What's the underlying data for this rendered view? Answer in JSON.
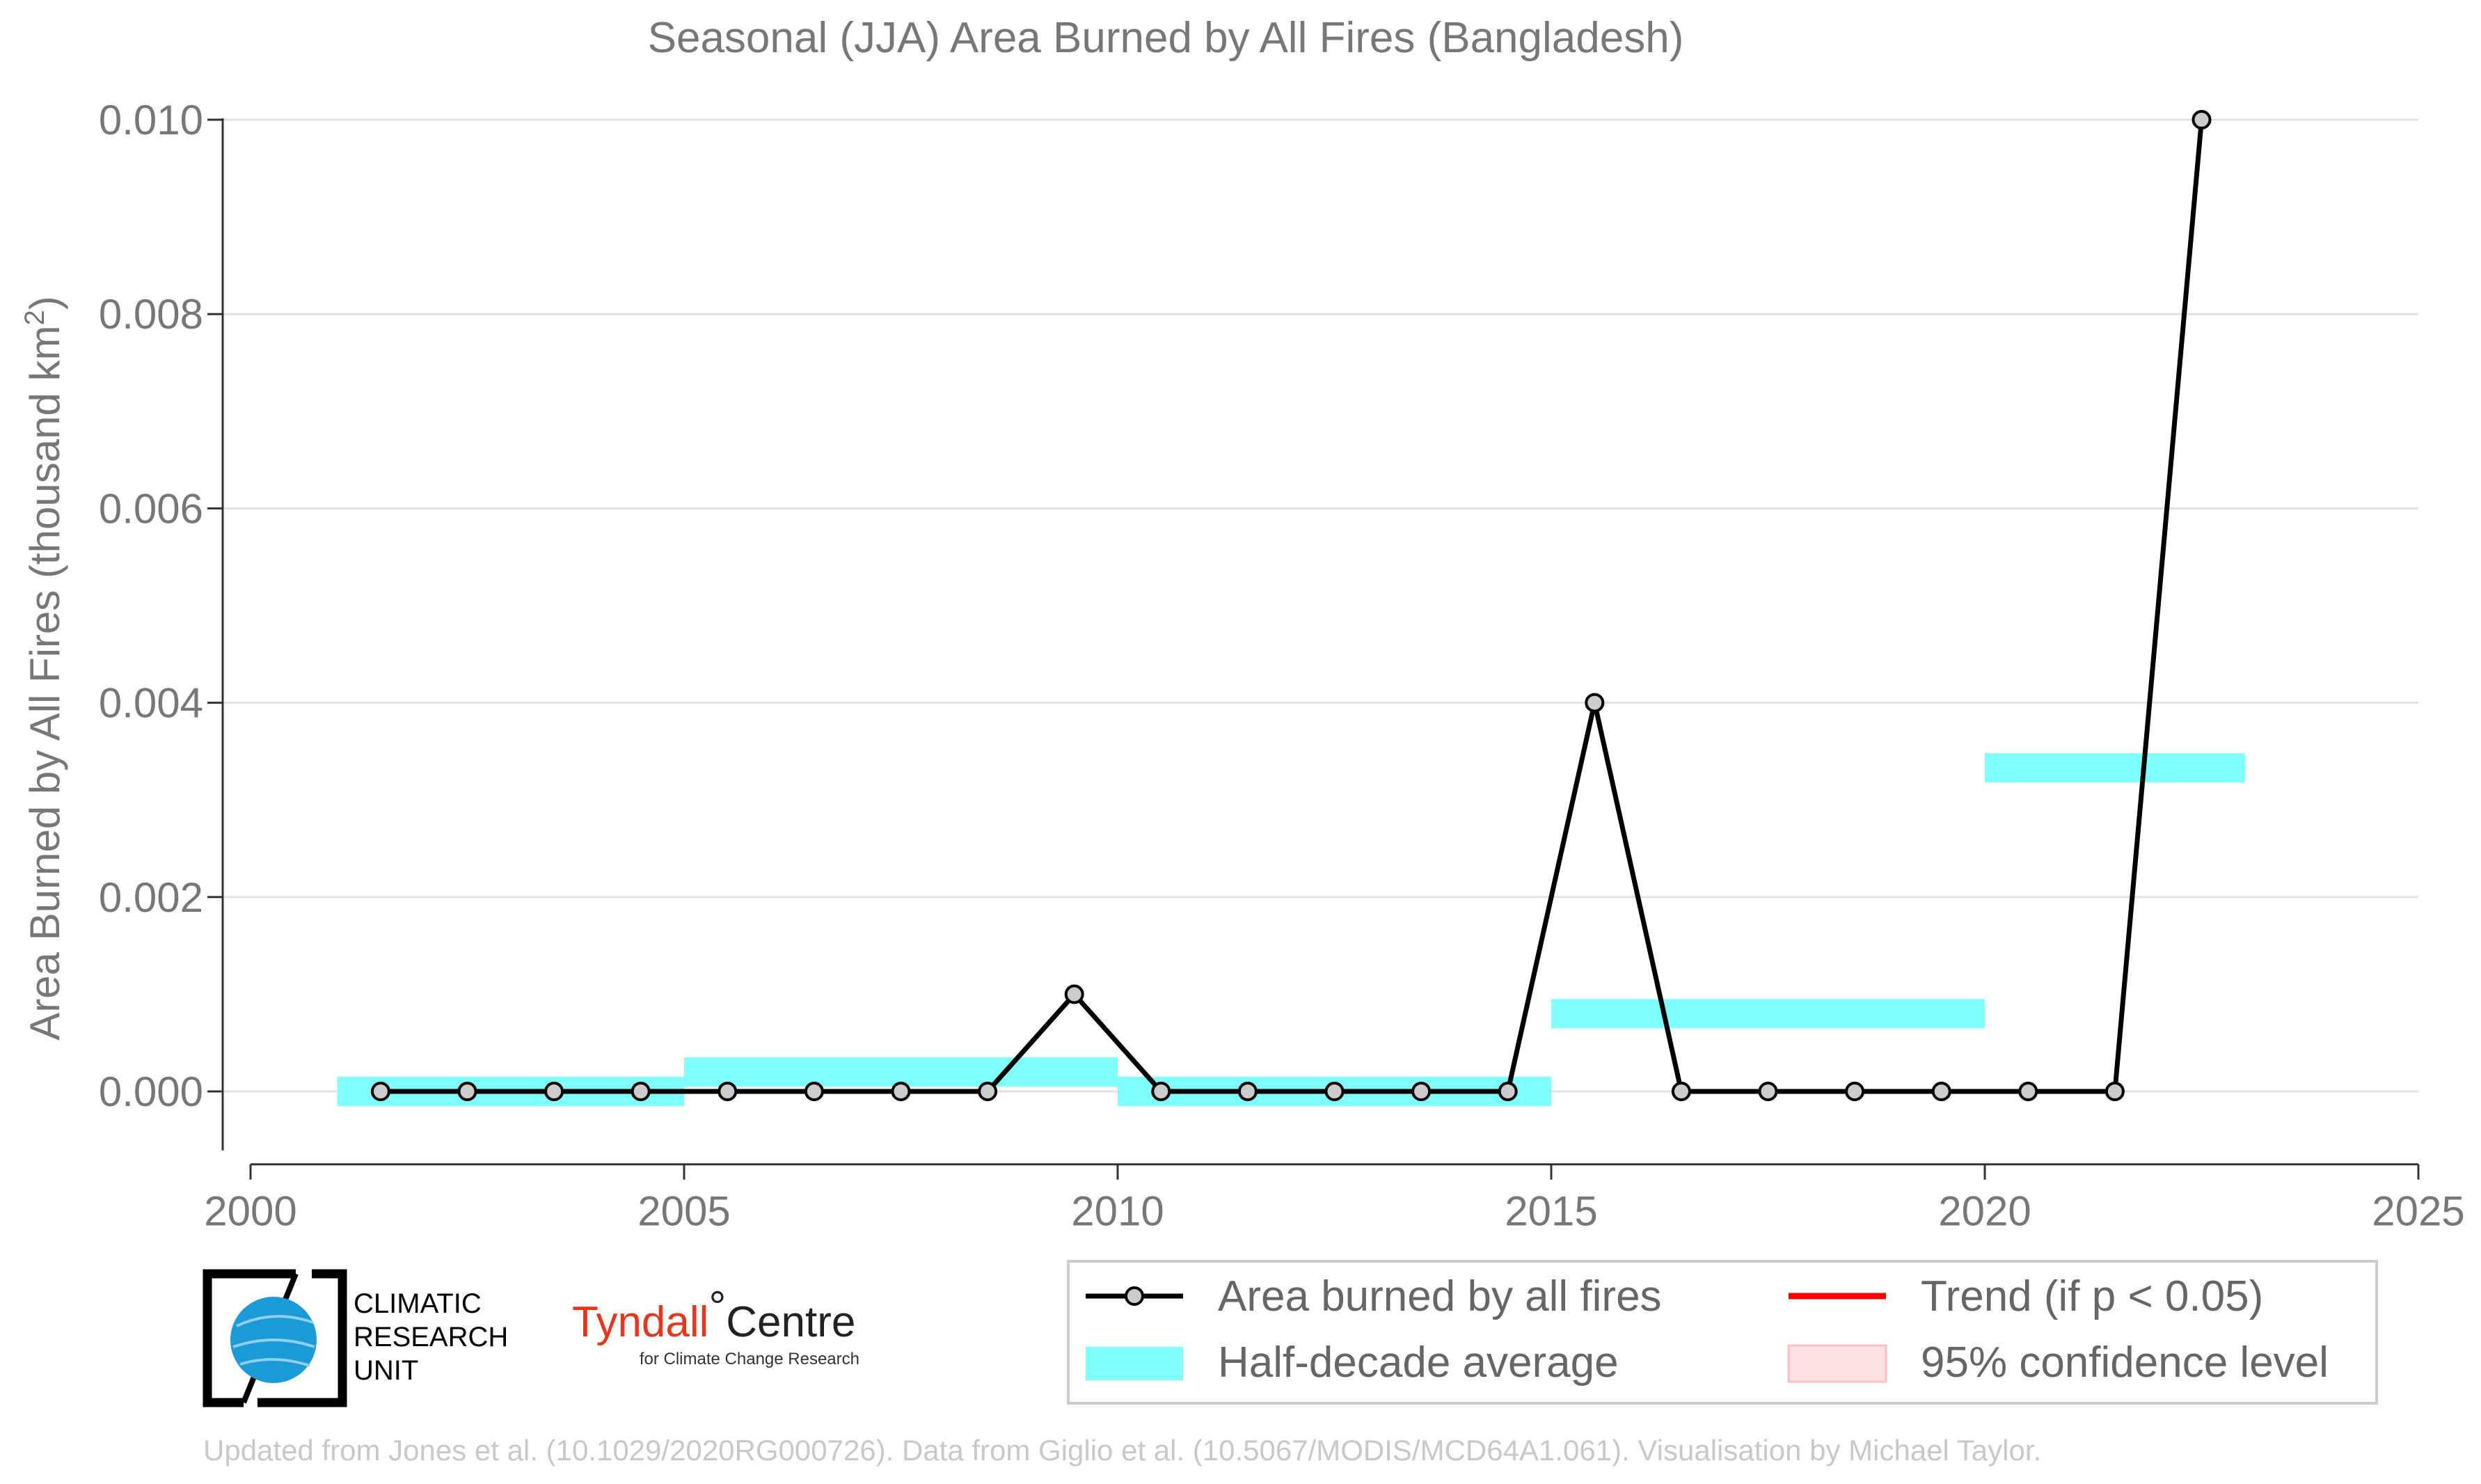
{
  "chart_data": {
    "type": "line",
    "title": "Seasonal (JJA) Area Burned by All Fires (Bangladesh)",
    "ylabel": "Area Burned by All Fires (thousand km",
    "ylabel_sup": "2",
    "ylabel_close": ")",
    "xlabel": "",
    "xlim": [
      2000,
      2025
    ],
    "ylim": [
      -0.00075,
      0.01
    ],
    "xticks": [
      2000,
      2005,
      2010,
      2015,
      2020,
      2025
    ],
    "xtick_labels": [
      "2000",
      "2005",
      "2010",
      "2015",
      "2020",
      "2025"
    ],
    "yticks": [
      0.0,
      0.002,
      0.004,
      0.006,
      0.008,
      0.01
    ],
    "ytick_labels": [
      "0.000",
      "0.002",
      "0.004",
      "0.006",
      "0.008",
      "0.010"
    ],
    "grid": "horizontal",
    "series": [
      {
        "name": "Area burned by all fires",
        "color": "#000000",
        "marker_fill": "#cccccc",
        "x": [
          2001.5,
          2002.5,
          2003.5,
          2004.5,
          2005.5,
          2006.5,
          2007.5,
          2008.5,
          2009.5,
          2010.5,
          2011.5,
          2012.5,
          2013.5,
          2014.5,
          2015.5,
          2016.5,
          2017.5,
          2018.5,
          2019.5,
          2020.5,
          2021.5,
          2022.5
        ],
        "y": [
          0.0,
          0.0,
          0.0,
          0.0,
          0.0,
          0.0,
          0.0,
          0.0,
          0.001,
          0.0,
          0.0,
          0.0,
          0.0,
          0.0,
          0.004,
          0.0,
          0.0,
          0.0,
          0.0,
          0.0,
          0.0,
          0.01
        ]
      }
    ],
    "half_decade_average": {
      "name": "Half-decade average",
      "color": "#80ffff",
      "segments": [
        {
          "x0": 2001,
          "x1": 2005,
          "y": 0.0
        },
        {
          "x0": 2005,
          "x1": 2010,
          "y": 0.0002
        },
        {
          "x0": 2010,
          "x1": 2015,
          "y": 0.0
        },
        {
          "x0": 2015,
          "x1": 2020,
          "y": 0.0008
        },
        {
          "x0": 2020,
          "x1": 2023,
          "y": 0.00333
        }
      ]
    },
    "legend": {
      "placement": "bottom-right",
      "entries": [
        {
          "label": "Area burned by all fires",
          "style": "line-marker",
          "color": "#000000"
        },
        {
          "label": "Trend (if p < 0.05)",
          "style": "line",
          "color": "#ff0000"
        },
        {
          "label": "Half-decade average",
          "style": "band",
          "color": "#80ffff"
        },
        {
          "label": "95% confidence level",
          "style": "box",
          "color": "#ffe0e0"
        }
      ]
    }
  },
  "logos": {
    "cru_lines": [
      "CLIMATIC",
      "RESEARCH",
      "UNIT"
    ],
    "tyndall_main": "Tyndall",
    "tyndall_degree": "°",
    "tyndall_centre": "Centre",
    "tyndall_sub": "for Climate Change Research"
  },
  "footer": "Updated from Jones et al. (10.1029/2020RG000726). Data from Giglio et al. (10.5067/MODIS/MCD64A1.061). Visualisation by Michael Taylor."
}
